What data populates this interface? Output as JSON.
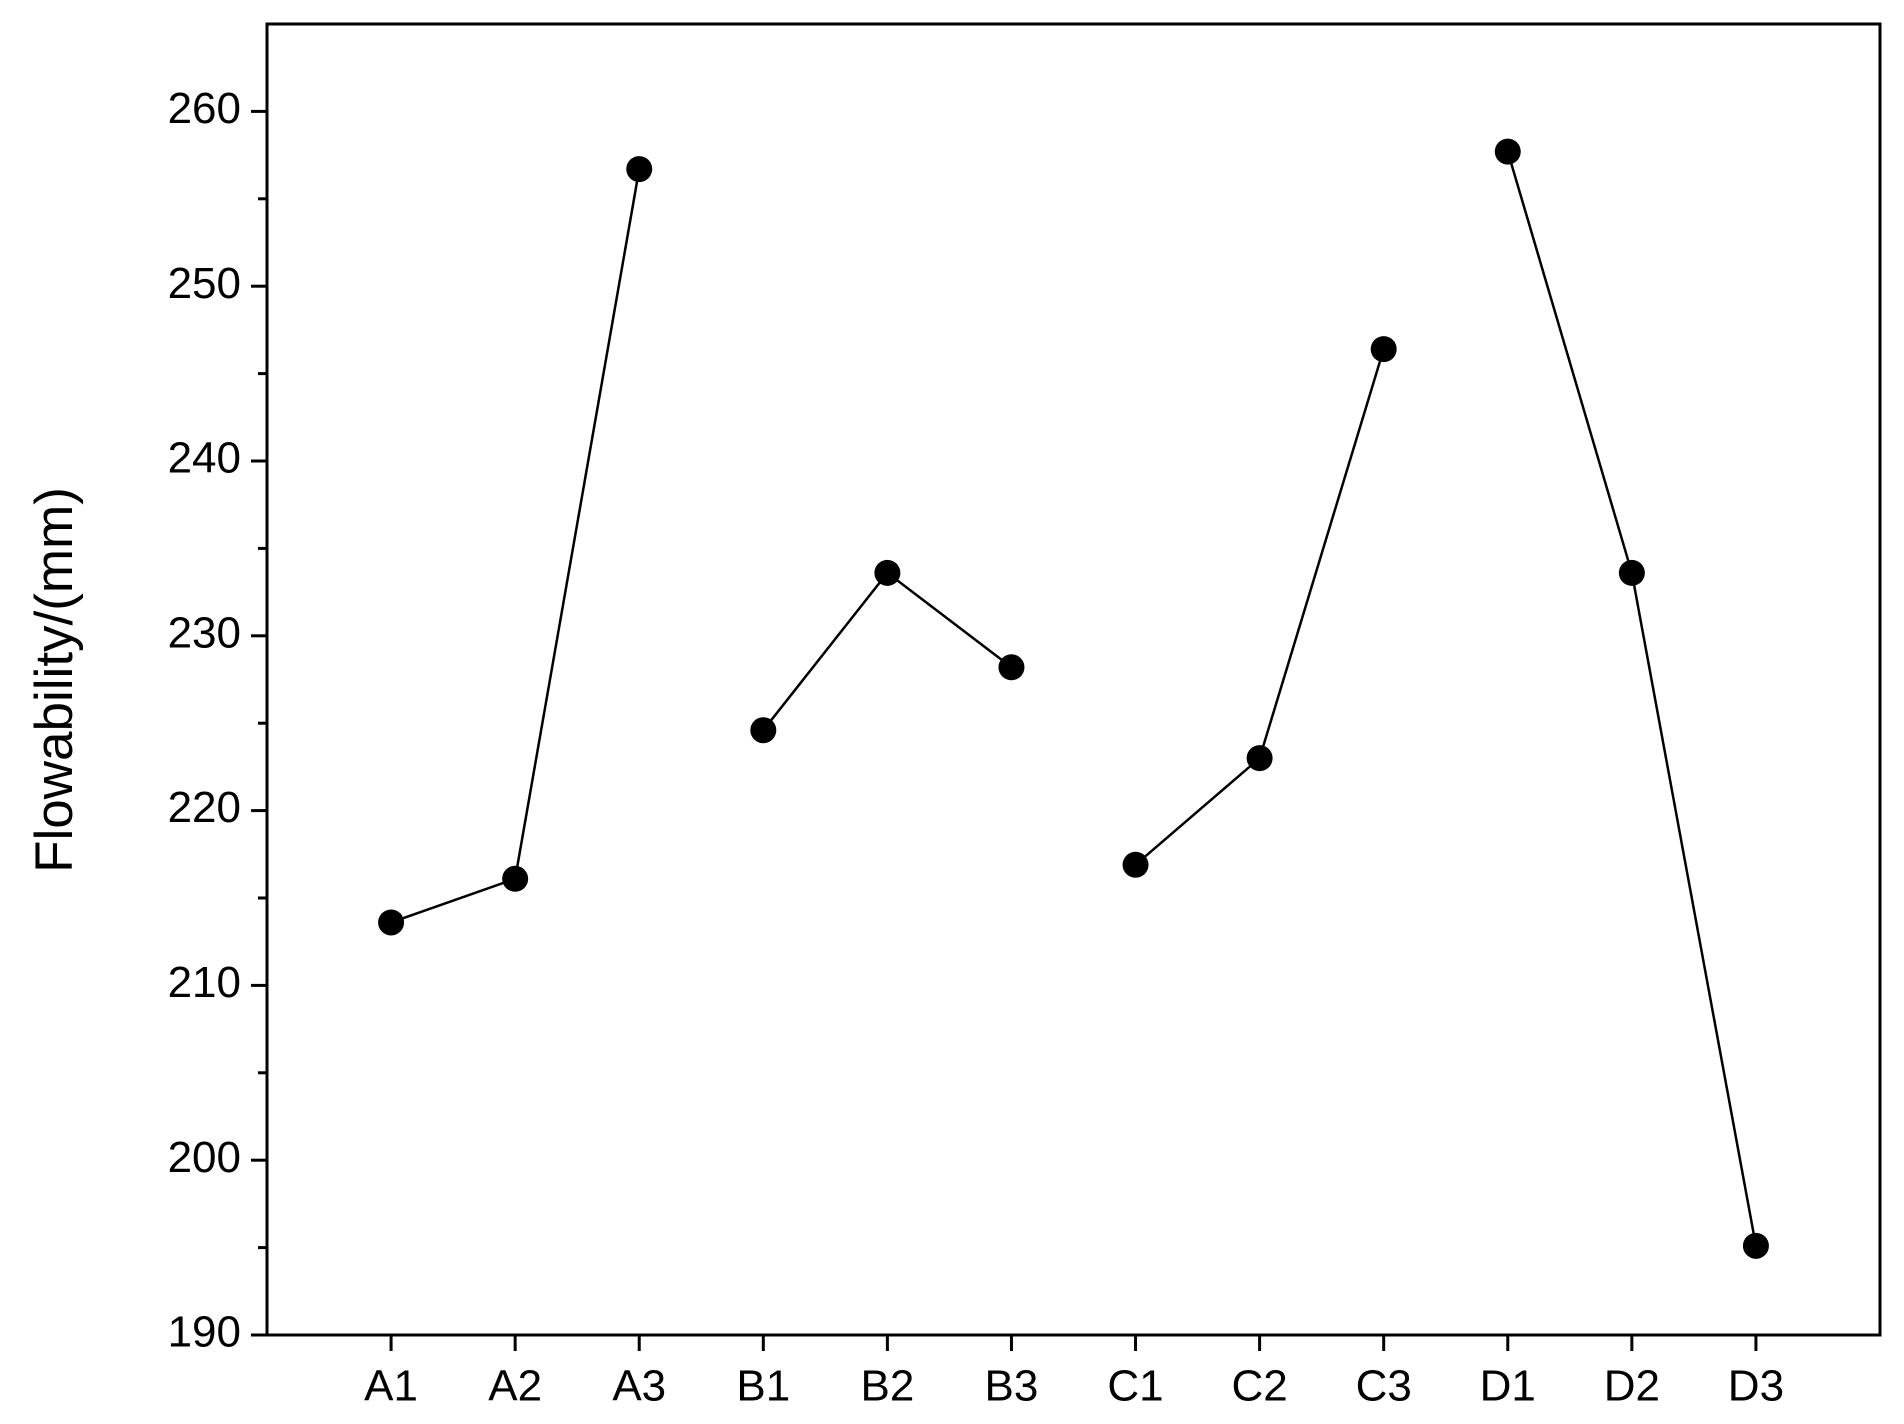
{
  "chart_data": {
    "type": "line",
    "ylabel": "Flowability/(mm)",
    "categories": [
      "A1",
      "A2",
      "A3",
      "B1",
      "B2",
      "B3",
      "C1",
      "C2",
      "C3",
      "D1",
      "D2",
      "D3"
    ],
    "series": [
      {
        "color": "#000000",
        "values": [
          213.6,
          216.1,
          256.7,
          null,
          null,
          null,
          null,
          null,
          null,
          null,
          null,
          null
        ]
      },
      {
        "color": "#000000",
        "values": [
          null,
          null,
          null,
          224.6,
          233.6,
          228.2,
          null,
          null,
          null,
          null,
          null,
          null
        ]
      },
      {
        "color": "#000000",
        "values": [
          null,
          null,
          null,
          null,
          null,
          null,
          216.9,
          223.0,
          246.4,
          null,
          null,
          null
        ]
      },
      {
        "color": "#000000",
        "values": [
          null,
          null,
          null,
          null,
          null,
          null,
          null,
          null,
          null,
          257.7,
          233.6,
          195.1
        ]
      }
    ],
    "ylim": [
      190,
      265
    ],
    "yticks": [
      190,
      200,
      210,
      220,
      230,
      240,
      250,
      260
    ],
    "grid": false
  }
}
